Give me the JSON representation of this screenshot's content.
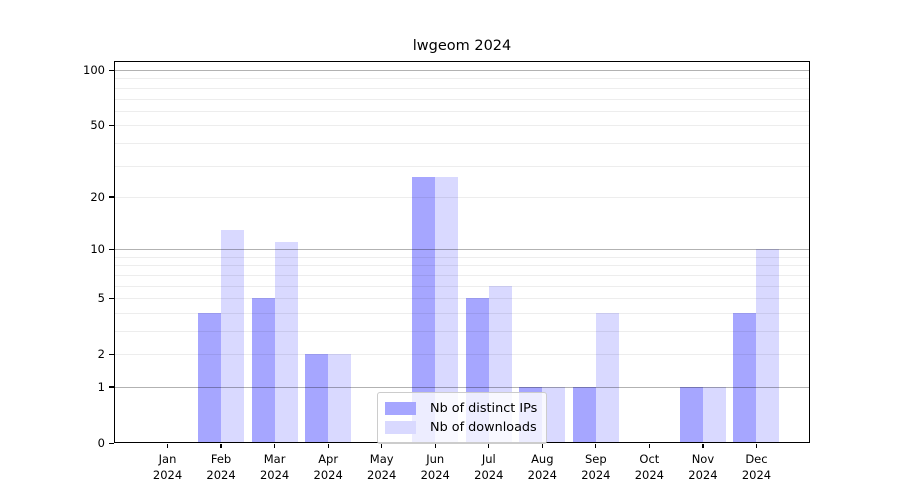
{
  "chart_data": {
    "type": "bar",
    "title": "lwgeom 2024",
    "categories": [
      "Jan",
      "Feb",
      "Mar",
      "Apr",
      "May",
      "Jun",
      "Jul",
      "Aug",
      "Sep",
      "Oct",
      "Nov",
      "Dec"
    ],
    "x_axis": {
      "year": "2024"
    },
    "y_axis": {
      "scale": "log1p",
      "ticks": [
        0,
        1,
        2,
        5,
        10,
        20,
        50,
        100
      ],
      "major_gridlines": [
        1,
        10,
        100
      ],
      "max": 112,
      "grid": "on"
    },
    "series": [
      {
        "name": "Nb of distinct IPs",
        "color": "#a6a6ff",
        "values": [
          0,
          4,
          5,
          2,
          0,
          26,
          5,
          1,
          1,
          0,
          1,
          4
        ]
      },
      {
        "name": "Nb of downloads",
        "color": "#d9d9ff",
        "values": [
          0,
          13,
          11,
          2,
          0,
          26,
          6,
          1,
          4,
          0,
          1,
          10
        ]
      }
    ],
    "legend": {
      "position": "lower center"
    }
  }
}
